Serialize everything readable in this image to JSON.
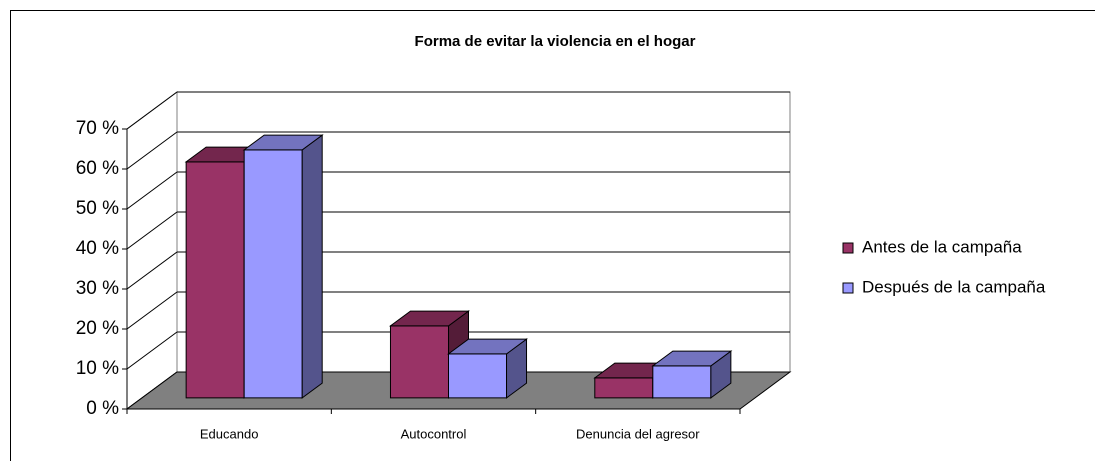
{
  "chart_data": {
    "type": "bar3d",
    "title": "Forma de evitar la violencia en el hogar",
    "categories": [
      "Educando",
      "Autocontrol",
      "Denuncia del agresor"
    ],
    "series": [
      {
        "name": "Antes de la campaña",
        "color": "#993366",
        "values": [
          59,
          18,
          5
        ]
      },
      {
        "name": "Después de la campaña",
        "color": "#9999ff",
        "values": [
          62,
          11,
          8
        ]
      }
    ],
    "ylim": [
      0,
      70
    ],
    "yticks": [
      {
        "value": 0,
        "label": "0 %"
      },
      {
        "value": 10,
        "label": "10 %"
      },
      {
        "value": 20,
        "label": "20 %"
      },
      {
        "value": 30,
        "label": "30 %"
      },
      {
        "value": 40,
        "label": "40 %"
      },
      {
        "value": 50,
        "label": "50 %"
      },
      {
        "value": 60,
        "label": "60 %"
      },
      {
        "value": 70,
        "label": "70 %"
      }
    ],
    "grid": true,
    "legend": "right"
  }
}
